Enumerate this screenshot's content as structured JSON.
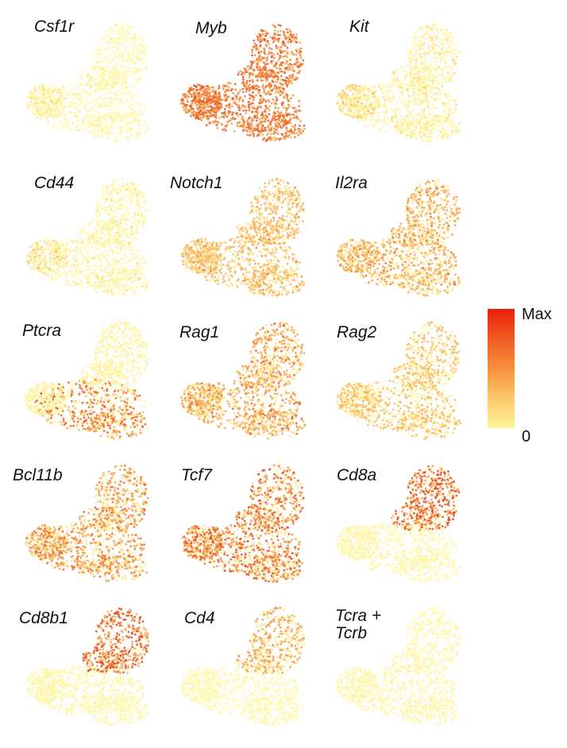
{
  "panels": [
    {
      "label": "Csf1r",
      "level": 0.1,
      "colors": [
        "#fff8b0",
        "#fdeb91",
        "#fbdc78"
      ]
    },
    {
      "label": "Myb",
      "level": 0.7,
      "colors": [
        "#f7a24b",
        "#f07a31",
        "#e9541d"
      ]
    },
    {
      "label": "Kit",
      "level": 0.25,
      "colors": [
        "#fff3a2",
        "#fcd879",
        "#f8b65a"
      ]
    },
    {
      "label": "Cd44",
      "level": 0.18,
      "colors": [
        "#fff6a8",
        "#fce08a",
        "#f6b05a"
      ]
    },
    {
      "label": "Notch1",
      "level": 0.45,
      "colors": [
        "#fddf86",
        "#f8b15a",
        "#f08a3a"
      ]
    },
    {
      "label": "Il2ra",
      "level": 0.45,
      "colors": [
        "#fde58f",
        "#f6a24c",
        "#ec6a2a"
      ]
    },
    {
      "label": "Ptcra",
      "level": 0.45,
      "colors": [
        "#fff2a0",
        "#f8b35c",
        "#ec5f25"
      ]
    },
    {
      "label": "Rag1",
      "level": 0.5,
      "colors": [
        "#fde28a",
        "#f6a34e",
        "#ec5f25"
      ]
    },
    {
      "label": "Rag2",
      "level": 0.4,
      "colors": [
        "#fff0a0",
        "#f8b860",
        "#ef7b32"
      ]
    },
    {
      "label": "Bcl11b",
      "level": 0.55,
      "colors": [
        "#fde590",
        "#f59a48",
        "#ec6328"
      ]
    },
    {
      "label": "Tcf7",
      "level": 0.65,
      "colors": [
        "#fde08a",
        "#f39241",
        "#e94f1e"
      ]
    },
    {
      "label": "Cd8a",
      "level": 0.35,
      "colors": [
        "#fff6a8",
        "#f6a04d",
        "#e8451b"
      ]
    },
    {
      "label": "Cd8b1",
      "level": 0.35,
      "colors": [
        "#fff6a8",
        "#f6a04d",
        "#e8451b"
      ]
    },
    {
      "label": "Cd4",
      "level": 0.15,
      "colors": [
        "#fff8b0",
        "#fde08a",
        "#f39a48"
      ]
    },
    {
      "label": "Tcra +\nTcrb",
      "level": 0.1,
      "colors": [
        "#fff8b4",
        "#fff0a0",
        "#f8c870"
      ]
    }
  ],
  "legend": {
    "max_label": "Max",
    "min_label": "0",
    "gradient": [
      "#ea1f0a",
      "#f15a22",
      "#f7913a",
      "#fcc869",
      "#fff59a"
    ]
  }
}
